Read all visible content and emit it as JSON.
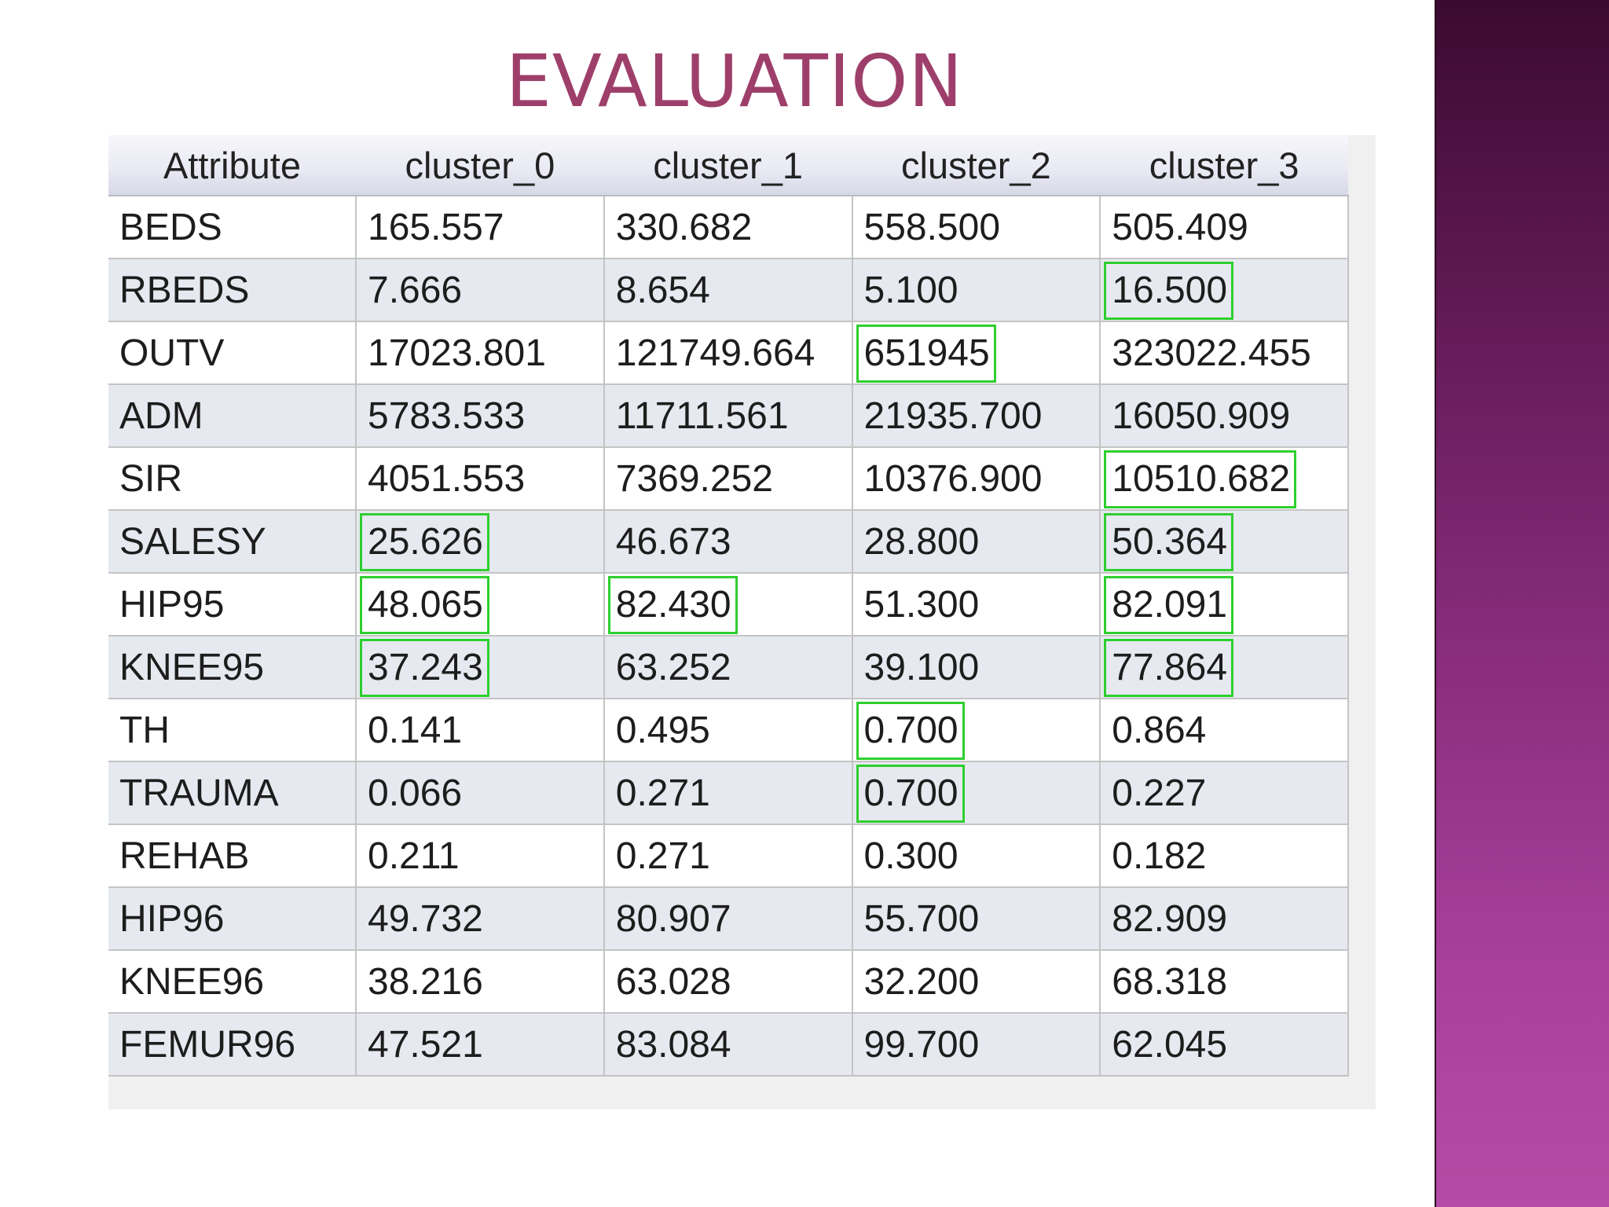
{
  "slide": {
    "title": "EVALUATION"
  },
  "table": {
    "headers": [
      "Attribute",
      "cluster_0",
      "cluster_1",
      "cluster_2",
      "cluster_3"
    ],
    "rows": [
      [
        "BEDS",
        "165.557",
        "330.682",
        "558.500",
        "505.409"
      ],
      [
        "RBEDS",
        "7.666",
        "8.654",
        "5.100",
        "16.500"
      ],
      [
        "OUTV",
        "17023.801",
        "121749.664",
        "651945",
        "323022.455"
      ],
      [
        "ADM",
        "5783.533",
        "11711.561",
        "21935.700",
        "16050.909"
      ],
      [
        "SIR",
        "4051.553",
        "7369.252",
        "10376.900",
        "10510.682"
      ],
      [
        "SALESY",
        "25.626",
        "46.673",
        "28.800",
        "50.364"
      ],
      [
        "HIP95",
        "48.065",
        "82.430",
        "51.300",
        "82.091"
      ],
      [
        "KNEE95",
        "37.243",
        "63.252",
        "39.100",
        "77.864"
      ],
      [
        "TH",
        "0.141",
        "0.495",
        "0.700",
        "0.864"
      ],
      [
        "TRAUMA",
        "0.066",
        "0.271",
        "0.700",
        "0.227"
      ],
      [
        "REHAB",
        "0.211",
        "0.271",
        "0.300",
        "0.182"
      ],
      [
        "HIP96",
        "49.732",
        "80.907",
        "55.700",
        "82.909"
      ],
      [
        "KNEE96",
        "38.216",
        "63.028",
        "32.200",
        "68.318"
      ],
      [
        "FEMUR96",
        "47.521",
        "83.084",
        "99.700",
        "62.045"
      ]
    ],
    "highlighted_cells": [
      [
        "RBEDS",
        "cluster_3"
      ],
      [
        "OUTV",
        "cluster_2"
      ],
      [
        "SIR",
        "cluster_3"
      ],
      [
        "SALESY",
        "cluster_0"
      ],
      [
        "SALESY",
        "cluster_3"
      ],
      [
        "HIP95",
        "cluster_0"
      ],
      [
        "KNEE95",
        "cluster_0"
      ],
      [
        "HIP95",
        "cluster_1"
      ],
      [
        "HIP95",
        "cluster_3"
      ],
      [
        "KNEE95",
        "cluster_3"
      ],
      [
        "TH",
        "cluster_2"
      ],
      [
        "TRAUMA",
        "cluster_2"
      ]
    ],
    "highlight_color": "#2ecf2e"
  },
  "colors": {
    "title": "#9e3f6b",
    "side_band_top": "#3b0a31",
    "side_band_bottom": "#b44ba4"
  }
}
